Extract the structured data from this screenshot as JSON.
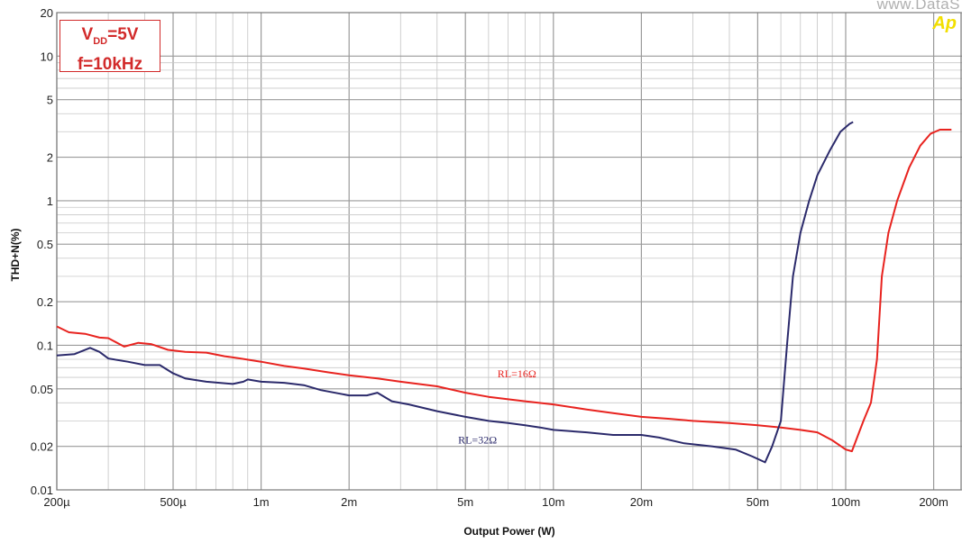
{
  "chart_data": {
    "type": "line",
    "xlabel": "Output Power (W)",
    "ylabel": "THD+N(%)",
    "x_scale": "log",
    "y_scale": "log",
    "xlim": [
      0.0002,
      0.25
    ],
    "ylim": [
      0.01,
      20
    ],
    "x_ticks": [
      {
        "value": 0.0002,
        "label": "200µ"
      },
      {
        "value": 0.0005,
        "label": "500µ"
      },
      {
        "value": 0.001,
        "label": "1m"
      },
      {
        "value": 0.002,
        "label": "2m"
      },
      {
        "value": 0.005,
        "label": "5m"
      },
      {
        "value": 0.01,
        "label": "10m"
      },
      {
        "value": 0.02,
        "label": "20m"
      },
      {
        "value": 0.05,
        "label": "50m"
      },
      {
        "value": 0.1,
        "label": "100m"
      },
      {
        "value": 0.2,
        "label": "200m"
      }
    ],
    "y_ticks": [
      {
        "value": 0.01,
        "label": "0.01"
      },
      {
        "value": 0.02,
        "label": "0.02"
      },
      {
        "value": 0.05,
        "label": "0.05"
      },
      {
        "value": 0.1,
        "label": "0.1"
      },
      {
        "value": 0.2,
        "label": "0.2"
      },
      {
        "value": 0.5,
        "label": "0.5"
      },
      {
        "value": 1,
        "label": "1"
      },
      {
        "value": 2,
        "label": "2"
      },
      {
        "value": 5,
        "label": "5"
      },
      {
        "value": 10,
        "label": "10"
      },
      {
        "value": 20,
        "label": "20"
      }
    ],
    "grid": true,
    "conditions": {
      "vdd_prefix": "V",
      "vdd_sub": "DD",
      "vdd_value": "=5V",
      "freq": "f=10kHz"
    },
    "series": [
      {
        "name": "RL=16Ω",
        "color": "#e8231f",
        "points": [
          [
            0.0002,
            0.135
          ],
          [
            0.00022,
            0.123
          ],
          [
            0.00025,
            0.12
          ],
          [
            0.00028,
            0.113
          ],
          [
            0.0003,
            0.112
          ],
          [
            0.00034,
            0.098
          ],
          [
            0.00038,
            0.104
          ],
          [
            0.00042,
            0.102
          ],
          [
            0.00048,
            0.093
          ],
          [
            0.00055,
            0.09
          ],
          [
            0.00065,
            0.089
          ],
          [
            0.00075,
            0.084
          ],
          [
            0.00085,
            0.081
          ],
          [
            0.001,
            0.077
          ],
          [
            0.0012,
            0.072
          ],
          [
            0.0014,
            0.069
          ],
          [
            0.0017,
            0.065
          ],
          [
            0.002,
            0.062
          ],
          [
            0.0025,
            0.059
          ],
          [
            0.003,
            0.056
          ],
          [
            0.004,
            0.052
          ],
          [
            0.005,
            0.047
          ],
          [
            0.006,
            0.044
          ],
          [
            0.008,
            0.041
          ],
          [
            0.01,
            0.039
          ],
          [
            0.013,
            0.036
          ],
          [
            0.016,
            0.034
          ],
          [
            0.02,
            0.032
          ],
          [
            0.025,
            0.031
          ],
          [
            0.03,
            0.03
          ],
          [
            0.04,
            0.029
          ],
          [
            0.05,
            0.028
          ],
          [
            0.06,
            0.027
          ],
          [
            0.07,
            0.026
          ],
          [
            0.08,
            0.025
          ],
          [
            0.09,
            0.022
          ],
          [
            0.1,
            0.019
          ],
          [
            0.105,
            0.0185
          ],
          [
            0.115,
            0.03
          ],
          [
            0.122,
            0.04
          ],
          [
            0.128,
            0.08
          ],
          [
            0.133,
            0.3
          ],
          [
            0.14,
            0.6
          ],
          [
            0.15,
            1.0
          ],
          [
            0.165,
            1.7
          ],
          [
            0.18,
            2.4
          ],
          [
            0.195,
            2.9
          ],
          [
            0.21,
            3.1
          ],
          [
            0.23,
            3.1
          ]
        ]
      },
      {
        "name": "RL=32Ω",
        "color": "#2b2a6b",
        "points": [
          [
            0.0002,
            0.085
          ],
          [
            0.00023,
            0.087
          ],
          [
            0.00026,
            0.096
          ],
          [
            0.00028,
            0.09
          ],
          [
            0.0003,
            0.081
          ],
          [
            0.00035,
            0.077
          ],
          [
            0.0004,
            0.073
          ],
          [
            0.00045,
            0.073
          ],
          [
            0.0005,
            0.064
          ],
          [
            0.00055,
            0.059
          ],
          [
            0.00065,
            0.056
          ],
          [
            0.0008,
            0.054
          ],
          [
            0.00087,
            0.056
          ],
          [
            0.0009,
            0.058
          ],
          [
            0.001,
            0.056
          ],
          [
            0.0012,
            0.055
          ],
          [
            0.0014,
            0.053
          ],
          [
            0.0016,
            0.049
          ],
          [
            0.002,
            0.045
          ],
          [
            0.0023,
            0.045
          ],
          [
            0.0025,
            0.047
          ],
          [
            0.0028,
            0.041
          ],
          [
            0.0032,
            0.039
          ],
          [
            0.004,
            0.035
          ],
          [
            0.005,
            0.032
          ],
          [
            0.006,
            0.03
          ],
          [
            0.007,
            0.029
          ],
          [
            0.008,
            0.028
          ],
          [
            0.009,
            0.027
          ],
          [
            0.01,
            0.026
          ],
          [
            0.013,
            0.025
          ],
          [
            0.016,
            0.024
          ],
          [
            0.02,
            0.024
          ],
          [
            0.023,
            0.023
          ],
          [
            0.028,
            0.021
          ],
          [
            0.035,
            0.02
          ],
          [
            0.042,
            0.019
          ],
          [
            0.048,
            0.017
          ],
          [
            0.053,
            0.0155
          ],
          [
            0.056,
            0.02
          ],
          [
            0.06,
            0.03
          ],
          [
            0.063,
            0.1
          ],
          [
            0.066,
            0.3
          ],
          [
            0.07,
            0.6
          ],
          [
            0.075,
            1.0
          ],
          [
            0.08,
            1.5
          ],
          [
            0.088,
            2.2
          ],
          [
            0.096,
            3.0
          ],
          [
            0.103,
            3.4
          ],
          [
            0.106,
            3.5
          ]
        ]
      }
    ],
    "annotations": [
      {
        "text": "RL=16Ω",
        "x": 0.0075,
        "y": 0.06,
        "color": "#e8231f"
      },
      {
        "text": "RL=32Ω",
        "x": 0.0055,
        "y": 0.021,
        "color": "#2b2a6b"
      }
    ]
  },
  "watermark": {
    "site": "www.DataS",
    "logo": "Ap"
  }
}
